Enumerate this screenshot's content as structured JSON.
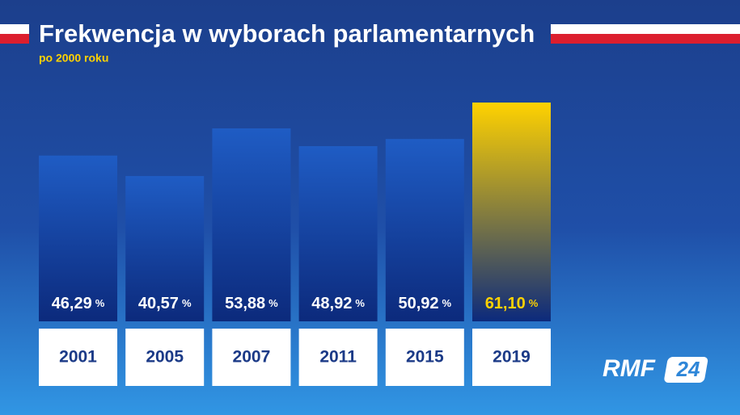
{
  "chart_data": {
    "type": "bar",
    "title": "Frekwencja w wyborach parlamentarnych",
    "subtitle": "po 2000 roku",
    "categories": [
      "2001",
      "2005",
      "2007",
      "2011",
      "2015",
      "2019"
    ],
    "values": [
      46.29,
      40.57,
      53.88,
      48.92,
      50.92,
      61.1
    ],
    "value_labels": [
      "46,29",
      "40,57",
      "53,88",
      "48,92",
      "50,92",
      "61,10"
    ],
    "unit": "%",
    "colors": [
      "#1f5cc4",
      "#1f5cc4",
      "#1f5cc4",
      "#1f5cc4",
      "#1f5cc4",
      "#ffd200"
    ],
    "label_colors": [
      "#ffffff",
      "#ffffff",
      "#ffffff",
      "#ffffff",
      "#ffffff",
      "#ffd200"
    ]
  },
  "logo": {
    "text": "RMF",
    "badge": "24"
  }
}
